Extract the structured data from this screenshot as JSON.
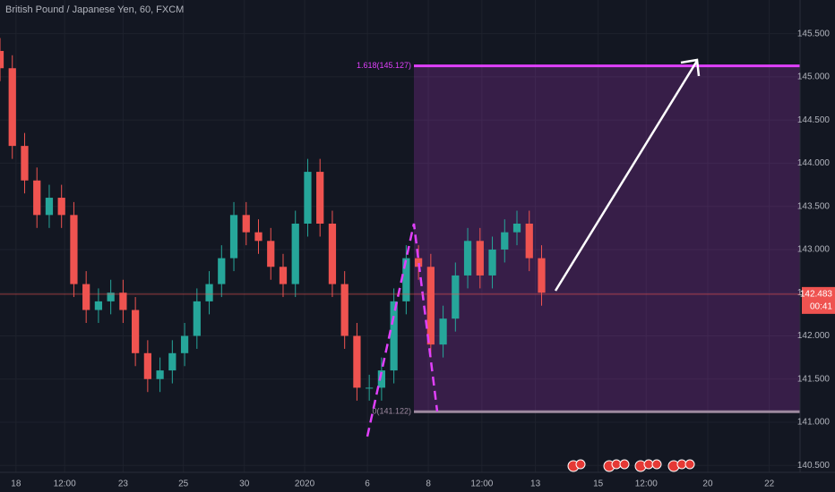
{
  "chart_data": {
    "type": "candlestick",
    "title": "British Pound / Japanese Yen, 60, FXCM",
    "x": [
      0,
      2,
      4,
      6,
      8,
      10,
      12,
      14,
      16,
      18,
      20,
      22,
      24,
      26,
      28,
      30,
      32,
      34,
      36,
      38,
      40,
      42,
      44,
      46,
      48,
      50,
      52,
      54,
      56,
      58,
      60,
      62,
      64,
      66,
      68,
      70,
      72,
      74,
      76,
      78,
      80,
      82,
      84,
      86,
      88
    ],
    "open": [
      145.3,
      145.1,
      144.2,
      143.8,
      143.4,
      143.6,
      143.4,
      142.6,
      142.3,
      142.4,
      142.5,
      142.3,
      141.8,
      141.5,
      141.6,
      141.8,
      142.0,
      142.4,
      142.6,
      142.9,
      143.4,
      143.2,
      143.1,
      142.8,
      142.6,
      143.3,
      143.9,
      143.3,
      142.6,
      142.0,
      141.4,
      141.4,
      141.6,
      142.4,
      142.9,
      142.8,
      141.9,
      142.2,
      142.7,
      143.1,
      142.7,
      143.0,
      143.2,
      143.3,
      142.9
    ],
    "high": [
      145.45,
      145.25,
      144.35,
      143.95,
      143.75,
      143.75,
      143.55,
      142.75,
      142.55,
      142.65,
      142.65,
      142.45,
      141.95,
      141.75,
      141.95,
      142.15,
      142.55,
      142.75,
      143.05,
      143.55,
      143.55,
      143.35,
      143.25,
      142.95,
      143.45,
      144.05,
      144.05,
      143.45,
      142.75,
      142.15,
      141.55,
      141.75,
      142.55,
      143.05,
      143.05,
      142.95,
      142.35,
      142.85,
      143.25,
      143.25,
      143.15,
      143.35,
      143.45,
      143.45,
      143.05
    ],
    "low": [
      144.95,
      144.05,
      143.65,
      143.25,
      143.25,
      143.25,
      142.45,
      142.15,
      142.15,
      142.25,
      142.15,
      141.65,
      141.35,
      141.35,
      141.45,
      141.65,
      141.85,
      142.25,
      142.45,
      142.75,
      143.05,
      142.95,
      142.65,
      142.45,
      142.45,
      143.15,
      143.15,
      142.45,
      141.85,
      141.25,
      141.25,
      141.25,
      141.45,
      142.25,
      142.65,
      141.75,
      141.75,
      142.05,
      142.55,
      142.55,
      142.55,
      142.85,
      143.05,
      142.75,
      142.35
    ],
    "close": [
      145.1,
      144.2,
      143.8,
      143.4,
      143.6,
      143.4,
      142.6,
      142.3,
      142.4,
      142.5,
      142.3,
      141.8,
      141.5,
      141.6,
      141.8,
      142.0,
      142.4,
      142.6,
      142.9,
      143.4,
      143.2,
      143.1,
      142.8,
      142.6,
      143.3,
      143.9,
      143.3,
      142.6,
      142.0,
      141.4,
      141.4,
      141.6,
      142.4,
      142.9,
      142.8,
      141.9,
      142.2,
      142.7,
      143.1,
      142.7,
      143.0,
      143.2,
      143.3,
      142.9,
      142.5
    ],
    "up_color": "#26a69a",
    "down_color": "#ef5350",
    "xlim": [
      0,
      130
    ],
    "xticks": [
      {
        "value": 2.6,
        "label": "18"
      },
      {
        "value": 10.5,
        "label": "12:00"
      },
      {
        "value": 20,
        "label": "23"
      },
      {
        "value": 29.8,
        "label": "25"
      },
      {
        "value": 39.7,
        "label": "30"
      },
      {
        "value": 49.5,
        "label": "2020"
      },
      {
        "value": 59.7,
        "label": "6"
      },
      {
        "value": 69.6,
        "label": "8"
      },
      {
        "value": 78.3,
        "label": "12:00"
      },
      {
        "value": 87,
        "label": "13"
      },
      {
        "value": 97.2,
        "label": "15"
      },
      {
        "value": 105,
        "label": "12:00"
      },
      {
        "value": 115,
        "label": "20"
      },
      {
        "value": 125,
        "label": "22"
      }
    ],
    "ylim": [
      140.42,
      145.89
    ],
    "yticks": [
      {
        "value": 140.5,
        "label": "140.500"
      },
      {
        "value": 141,
        "label": "141.000"
      },
      {
        "value": 141.5,
        "label": "141.500"
      },
      {
        "value": 142,
        "label": "142.000"
      },
      {
        "value": 142.5,
        "label": "142.500"
      },
      {
        "value": 143,
        "label": "143.000"
      },
      {
        "value": 143.5,
        "label": "143.500"
      },
      {
        "value": 144,
        "label": "144.000"
      },
      {
        "value": 144.5,
        "label": "144.500"
      },
      {
        "value": 145,
        "label": "145.000"
      },
      {
        "value": 145.5,
        "label": "145.500"
      }
    ],
    "grid": true,
    "fib_levels": [
      {
        "value": 145.127,
        "label": "1.618(145.127)"
      },
      {
        "value": 141.122,
        "label": "0(141.122)"
      }
    ],
    "fib_color": "#e040fb",
    "last_price": {
      "value": 142.483,
      "label": "142.483"
    },
    "countdown": "00:41"
  }
}
